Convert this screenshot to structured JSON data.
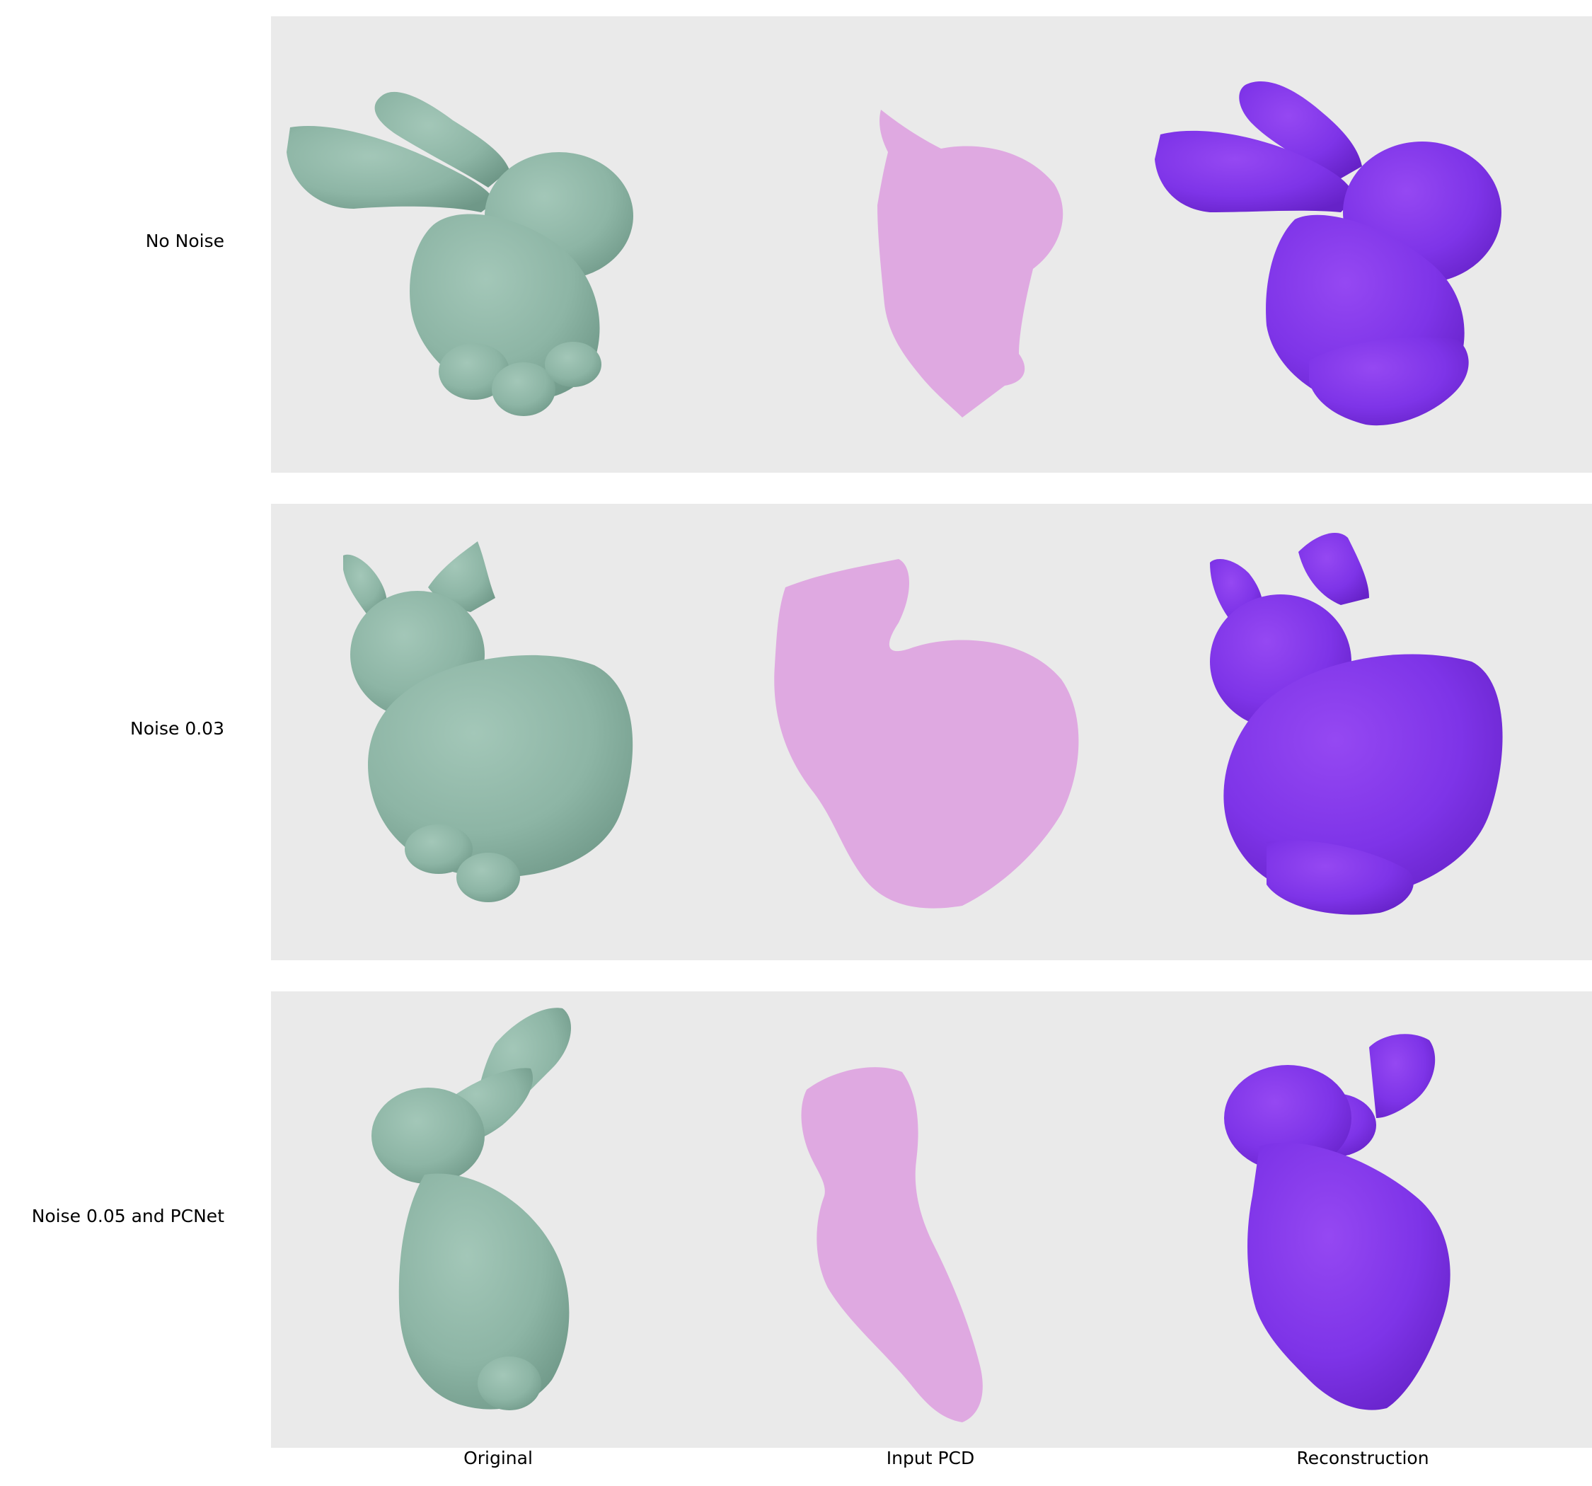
{
  "rows": [
    {
      "label": "No Noise"
    },
    {
      "label": "Noise 0.03"
    },
    {
      "label": "Noise 0.05 and PCNet"
    }
  ],
  "columns": [
    {
      "label": "Original"
    },
    {
      "label": "Input PCD"
    },
    {
      "label": "Reconstruction"
    }
  ],
  "colors": {
    "panel_background": "#eaeaea",
    "original_mesh": "#8db5a5",
    "input_points": "#dea5e0",
    "reconstruction_mesh": "#7e34e8"
  }
}
